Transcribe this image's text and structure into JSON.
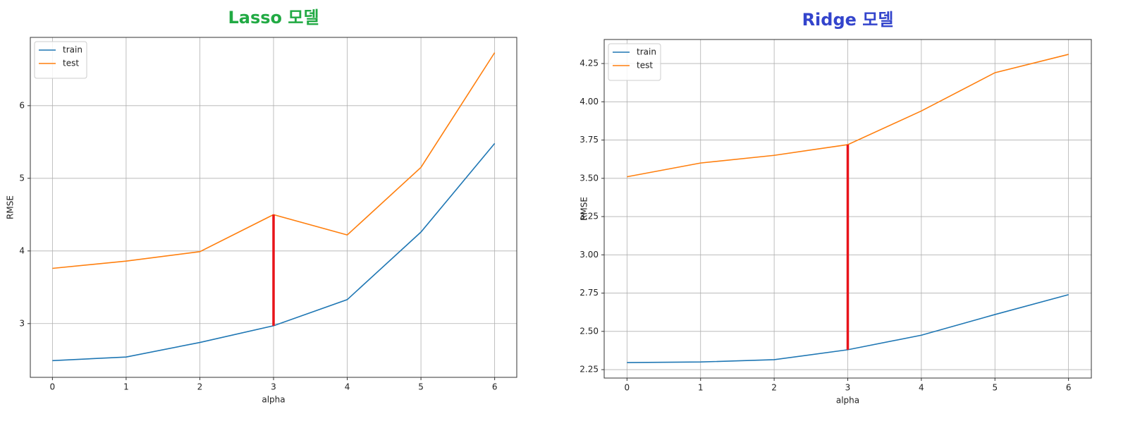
{
  "chart_data": [
    {
      "type": "line",
      "title": "Lasso 모델",
      "title_color": "#22aa44",
      "x": [
        0,
        1,
        2,
        3,
        4,
        5,
        6
      ],
      "xlim": [
        -0.3,
        6.3
      ],
      "xticks": [
        0,
        1,
        2,
        3,
        4,
        5,
        6
      ],
      "ylim": [
        2.26,
        6.94
      ],
      "yticks": [
        3,
        4,
        5,
        6
      ],
      "x_label": "alpha",
      "y_label": "RMSE",
      "grid": true,
      "legend": "upper-left",
      "series": [
        {
          "name": "train",
          "color": "#1f77b4",
          "values": [
            2.49,
            2.54,
            2.74,
            2.97,
            3.33,
            4.26,
            5.48
          ]
        },
        {
          "name": "test",
          "color": "#ff7f0e",
          "values": [
            3.76,
            3.86,
            3.99,
            4.5,
            4.22,
            5.15,
            6.73
          ]
        }
      ],
      "highlight": {
        "x": 3,
        "color": "#e8141a"
      }
    },
    {
      "type": "line",
      "title": "Ridge 모델",
      "title_color": "#3344cc",
      "x": [
        0,
        1,
        2,
        3,
        4,
        5,
        6
      ],
      "xlim": [
        -0.31,
        6.31
      ],
      "xticks": [
        0,
        1,
        2,
        3,
        4,
        5,
        6
      ],
      "ylim": [
        2.195,
        4.407
      ],
      "yticks": [
        2.25,
        {
          "value": 2.5,
          "label": "2.50"
        },
        2.75,
        {
          "value": 3,
          "label": "3.00"
        },
        3.25,
        {
          "value": 3.5,
          "label": "3.50"
        },
        3.75,
        {
          "value": 4,
          "label": "4.00"
        },
        4.25
      ],
      "x_label": "alpha",
      "y_label": "RMSE",
      "grid": true,
      "legend": "upper-left",
      "series": [
        {
          "name": "train",
          "color": "#1f77b4",
          "values": [
            2.296,
            2.3,
            2.315,
            2.38,
            2.475,
            2.61,
            2.74
          ]
        },
        {
          "name": "test",
          "color": "#ff7f0e",
          "values": [
            3.51,
            3.6,
            3.65,
            3.72,
            3.94,
            4.19,
            4.31
          ]
        }
      ],
      "highlight": {
        "x": 3,
        "color": "#e8141a"
      }
    }
  ]
}
